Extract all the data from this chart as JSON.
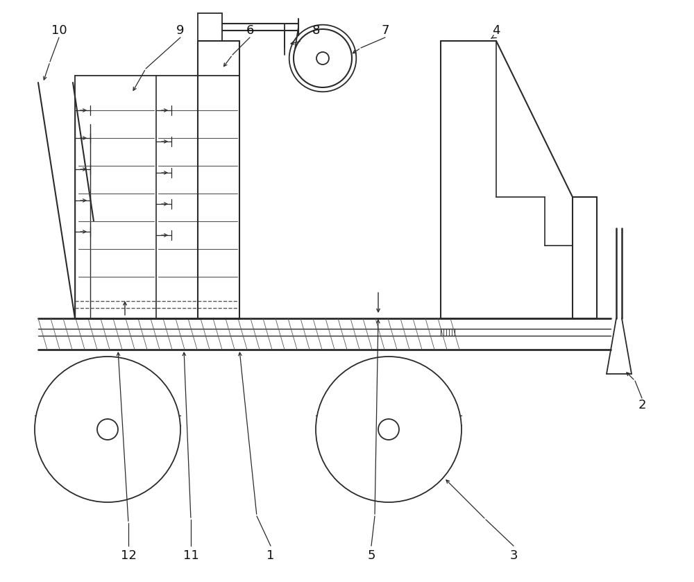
{
  "line_color": "#2a2a2a",
  "label_fontsize": 13,
  "bg_color": "#ffffff"
}
